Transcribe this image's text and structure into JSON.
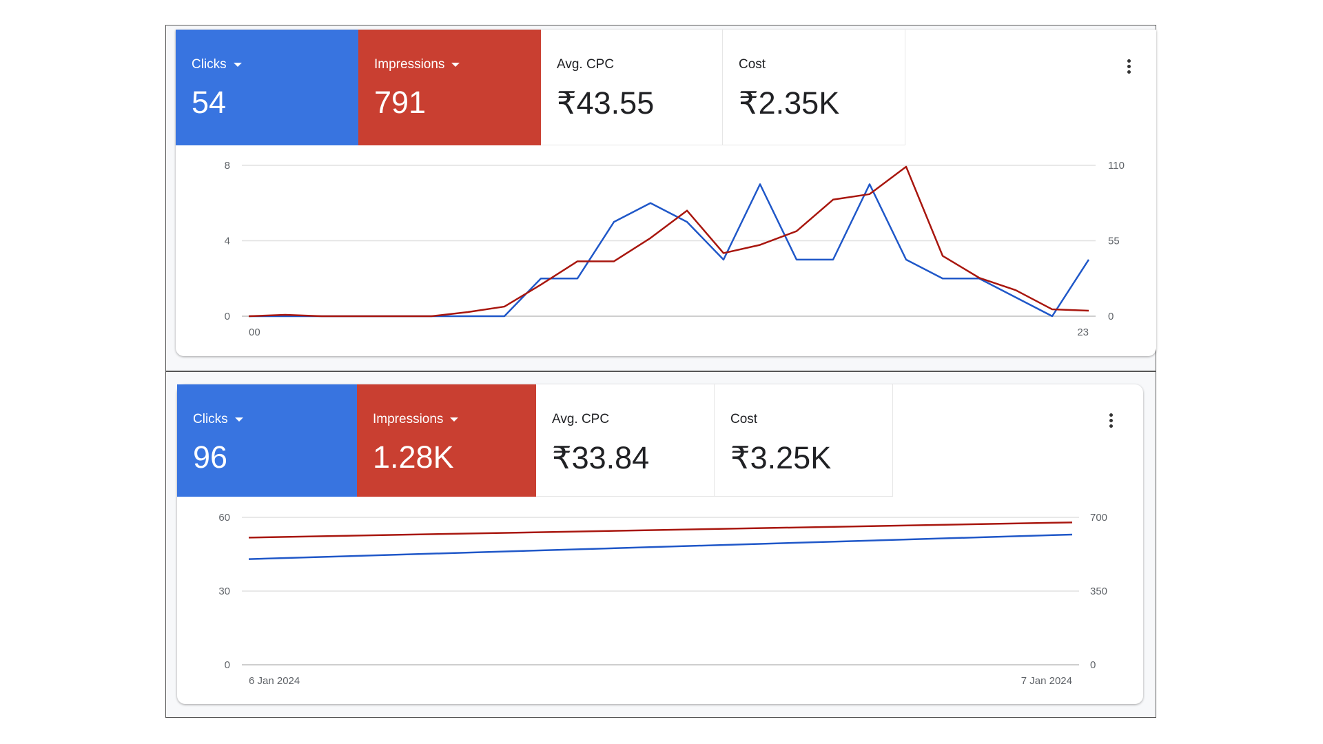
{
  "colors": {
    "clicks_tile": "#3874e0",
    "impressions_tile": "#c93f31",
    "clicks_line": "#1f57c8",
    "impressions_line": "#a8160e"
  },
  "panels": [
    {
      "metrics": [
        {
          "label": "Clicks",
          "value": "54",
          "dropdown": true
        },
        {
          "label": "Impressions",
          "value": "791",
          "dropdown": true
        },
        {
          "label": "Avg. CPC",
          "value": "₹43.55"
        },
        {
          "label": "Cost",
          "value": "₹2.35K"
        }
      ],
      "more_icon": "more-vert-icon"
    },
    {
      "metrics": [
        {
          "label": "Clicks",
          "value": "96",
          "dropdown": true
        },
        {
          "label": "Impressions",
          "value": "1.28K",
          "dropdown": true
        },
        {
          "label": "Avg. CPC",
          "value": "₹33.84"
        },
        {
          "label": "Cost",
          "value": "₹3.25K"
        }
      ],
      "more_icon": "more-vert-icon"
    }
  ],
  "chart_data": [
    {
      "type": "line",
      "x_ticks": [
        "00",
        "23"
      ],
      "x": [
        0,
        1,
        2,
        3,
        4,
        5,
        6,
        7,
        8,
        9,
        10,
        11,
        12,
        13,
        14,
        15,
        16,
        17,
        18,
        19,
        20,
        21,
        22,
        23
      ],
      "y_left": {
        "ticks": [
          "0",
          "4",
          "8"
        ],
        "range": [
          0,
          8
        ]
      },
      "y_right": {
        "ticks": [
          "0",
          "55",
          "110"
        ],
        "range": [
          0,
          110
        ]
      },
      "grid": true,
      "series": [
        {
          "name": "Clicks",
          "axis": "left",
          "values": [
            0,
            0,
            0,
            0,
            0,
            0,
            0,
            0,
            2,
            2,
            5,
            6,
            5,
            3,
            7,
            3,
            3,
            7,
            3,
            2,
            2,
            1,
            0,
            3
          ]
        },
        {
          "name": "Impressions",
          "axis": "right",
          "values": [
            0,
            1,
            0,
            0,
            0,
            0,
            3,
            7,
            23,
            40,
            40,
            57,
            77,
            46,
            52,
            62,
            85,
            89,
            109,
            44,
            28,
            19,
            5,
            4
          ]
        }
      ]
    },
    {
      "type": "line",
      "x_ticks": [
        "6 Jan 2024",
        "7 Jan 2024"
      ],
      "x": [
        "6 Jan 2024",
        "7 Jan 2024"
      ],
      "y_left": {
        "ticks": [
          "0",
          "30",
          "60"
        ],
        "range": [
          0,
          60
        ]
      },
      "y_right": {
        "ticks": [
          "0",
          "350",
          "700"
        ],
        "range": [
          0,
          700
        ]
      },
      "grid": true,
      "series": [
        {
          "name": "Clicks",
          "axis": "left",
          "values": [
            43,
            53
          ]
        },
        {
          "name": "Impressions",
          "axis": "right",
          "values": [
            604,
            676
          ]
        }
      ]
    }
  ]
}
